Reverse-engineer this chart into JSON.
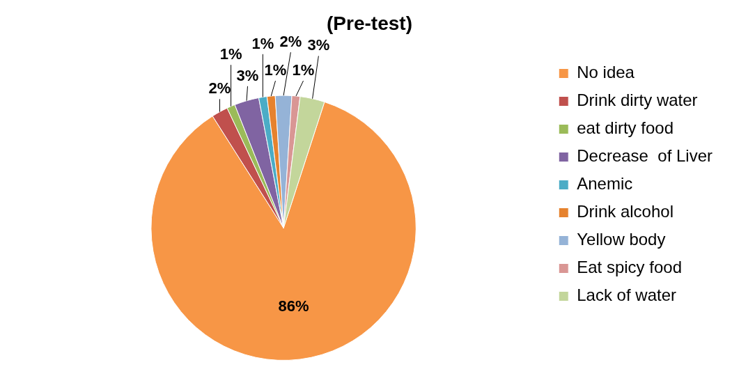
{
  "chart_data": {
    "type": "pie",
    "title": "(Pre-test)",
    "categories": [
      "No idea",
      "Drink dirty water",
      "eat dirty food",
      "Decrease  of Liver",
      "Anemic",
      "Drink alcohol",
      "Yellow body",
      "Eat spicy food",
      "Lack of water"
    ],
    "values": [
      86,
      2,
      1,
      3,
      1,
      1,
      2,
      1,
      3
    ],
    "value_labels": [
      "86%",
      "2%",
      "1%",
      "3%",
      "1%",
      "1%",
      "2%",
      "1%",
      "3%"
    ],
    "colors": [
      "#f79646",
      "#c0504d",
      "#9bbb59",
      "#8064a2",
      "#4bacc6",
      "#e6822e",
      "#95b3d7",
      "#d99694",
      "#c3d69b"
    ],
    "legend": "right"
  }
}
